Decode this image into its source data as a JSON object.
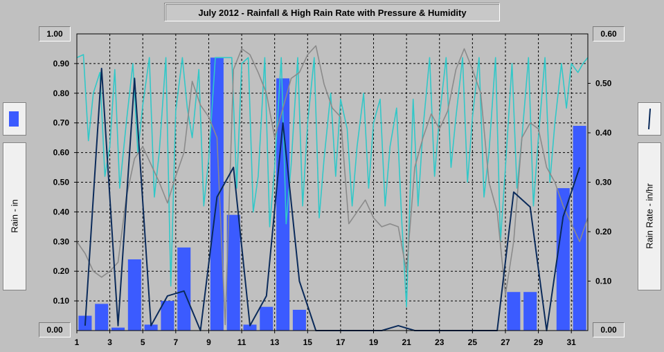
{
  "chart_data": {
    "type": "bar",
    "title": "July 2012 - Rainfall & High Rain Rate with Pressure & Humidity",
    "x": {
      "min": 1,
      "max": 32,
      "tick_labels": [
        "1",
        "3",
        "5",
        "7",
        "9",
        "11",
        "13",
        "15",
        "17",
        "19",
        "21",
        "23",
        "25",
        "27",
        "29",
        "31"
      ]
    },
    "y_left": {
      "label": "Rain - in",
      "ylim": [
        0,
        1.0
      ],
      "tick_labels": [
        "1.00",
        "0.90",
        "0.80",
        "0.70",
        "0.60",
        "0.50",
        "0.40",
        "0.30",
        "0.20",
        "0.10",
        "0.00"
      ]
    },
    "y_right": {
      "label": "Rain Rate - in/hr",
      "ylim": [
        0,
        0.6
      ],
      "tick_labels": [
        "0.60",
        "0.50",
        "0.40",
        "0.30",
        "0.20",
        "0.10",
        "0.00"
      ]
    },
    "grid": true,
    "series": [
      {
        "kind": "bar",
        "axis": "left",
        "color": "#3b5bff",
        "days": [
          1,
          2,
          3,
          4,
          5,
          6,
          7,
          8,
          9,
          10,
          11,
          12,
          13,
          14,
          15,
          16,
          17,
          18,
          19,
          20,
          21,
          22,
          23,
          24,
          25,
          26,
          27,
          28,
          29,
          30,
          31
        ],
        "values": [
          0.05,
          0.09,
          0.01,
          0.24,
          0.02,
          0.1,
          0.28,
          0.0,
          0.92,
          0.39,
          0.02,
          0.08,
          0.85,
          0.07,
          0.0,
          0.0,
          0.0,
          0.0,
          0.0,
          0.0,
          0.0,
          0.0,
          0.0,
          0.0,
          0.0,
          0.0,
          0.13,
          0.13,
          0.0,
          0.48,
          0.69
        ]
      },
      {
        "kind": "line",
        "axis": "right",
        "color": "#0a2a5a",
        "points": [
          [
            1.5,
            0.01
          ],
          [
            2.5,
            0.53
          ],
          [
            3.5,
            0.01
          ],
          [
            4.5,
            0.51
          ],
          [
            5.5,
            0.01
          ],
          [
            6.5,
            0.07
          ],
          [
            7.5,
            0.08
          ],
          [
            8.5,
            0.0
          ],
          [
            9.5,
            0.27
          ],
          [
            10.5,
            0.33
          ],
          [
            11.5,
            0.01
          ],
          [
            12.5,
            0.07
          ],
          [
            13.5,
            0.42
          ],
          [
            14.5,
            0.1
          ],
          [
            15.5,
            0.0
          ],
          [
            16.5,
            0.0
          ],
          [
            17.5,
            0.0
          ],
          [
            18.5,
            0.0
          ],
          [
            19.5,
            0.0
          ],
          [
            20.5,
            0.01
          ],
          [
            21.5,
            0.0
          ],
          [
            22.5,
            0.0
          ],
          [
            23.5,
            0.0
          ],
          [
            24.5,
            0.0
          ],
          [
            25.5,
            0.0
          ],
          [
            26.5,
            0.0
          ],
          [
            27.5,
            0.28
          ],
          [
            28.5,
            0.25
          ],
          [
            29.5,
            0.0
          ],
          [
            30.5,
            0.23
          ],
          [
            31.5,
            0.33
          ]
        ]
      },
      {
        "kind": "line",
        "axis": "left",
        "color": "#8a8a8a",
        "points": [
          [
            1,
            0.3
          ],
          [
            1.5,
            0.26
          ],
          [
            2,
            0.2
          ],
          [
            2.5,
            0.18
          ],
          [
            3,
            0.2
          ],
          [
            3.5,
            0.23
          ],
          [
            4,
            0.45
          ],
          [
            4.5,
            0.58
          ],
          [
            5,
            0.62
          ],
          [
            5.5,
            0.56
          ],
          [
            6,
            0.5
          ],
          [
            6.5,
            0.43
          ],
          [
            7,
            0.52
          ],
          [
            7.5,
            0.6
          ],
          [
            8,
            0.84
          ],
          [
            8.5,
            0.76
          ],
          [
            9,
            0.72
          ],
          [
            9.5,
            0.65
          ],
          [
            10,
            0.02
          ],
          [
            10.5,
            0.88
          ],
          [
            11,
            0.95
          ],
          [
            11.5,
            0.93
          ],
          [
            12,
            0.87
          ],
          [
            12.5,
            0.8
          ],
          [
            13,
            0.65
          ],
          [
            13.5,
            0.75
          ],
          [
            14,
            0.85
          ],
          [
            14.5,
            0.87
          ],
          [
            15,
            0.93
          ],
          [
            15.5,
            0.96
          ],
          [
            16,
            0.83
          ],
          [
            16.5,
            0.75
          ],
          [
            17,
            0.72
          ],
          [
            17.5,
            0.36
          ],
          [
            18,
            0.4
          ],
          [
            18.5,
            0.44
          ],
          [
            19,
            0.38
          ],
          [
            19.5,
            0.35
          ],
          [
            20,
            0.36
          ],
          [
            20.5,
            0.35
          ],
          [
            21,
            0.2
          ],
          [
            21.5,
            0.55
          ],
          [
            22,
            0.65
          ],
          [
            22.5,
            0.73
          ],
          [
            23,
            0.68
          ],
          [
            23.5,
            0.74
          ],
          [
            24,
            0.88
          ],
          [
            24.5,
            0.95
          ],
          [
            25,
            0.88
          ],
          [
            25.5,
            0.8
          ],
          [
            26,
            0.5
          ],
          [
            26.5,
            0.4
          ],
          [
            27,
            0.12
          ],
          [
            27.5,
            0.3
          ],
          [
            28,
            0.65
          ],
          [
            28.5,
            0.7
          ],
          [
            29,
            0.68
          ],
          [
            29.5,
            0.55
          ],
          [
            30,
            0.5
          ],
          [
            30.5,
            0.42
          ],
          [
            31,
            0.36
          ],
          [
            31.5,
            0.3
          ],
          [
            32,
            0.38
          ]
        ]
      },
      {
        "kind": "line",
        "axis": "left",
        "color": "#30c8c8",
        "points": [
          [
            1,
            0.92
          ],
          [
            1.4,
            0.93
          ],
          [
            1.7,
            0.64
          ],
          [
            2,
            0.8
          ],
          [
            2.4,
            0.87
          ],
          [
            2.7,
            0.52
          ],
          [
            3,
            0.62
          ],
          [
            3.3,
            0.88
          ],
          [
            3.6,
            0.48
          ],
          [
            4,
            0.7
          ],
          [
            4.4,
            0.9
          ],
          [
            4.7,
            0.6
          ],
          [
            5,
            0.76
          ],
          [
            5.4,
            0.92
          ],
          [
            5.7,
            0.45
          ],
          [
            6,
            0.6
          ],
          [
            6.4,
            0.92
          ],
          [
            6.7,
            0.15
          ],
          [
            7,
            0.74
          ],
          [
            7.4,
            0.92
          ],
          [
            7.7,
            0.75
          ],
          [
            8,
            0.65
          ],
          [
            8.4,
            0.88
          ],
          [
            8.7,
            0.42
          ],
          [
            9,
            0.58
          ],
          [
            9.4,
            0.92
          ],
          [
            9.7,
            0.92
          ],
          [
            10,
            0.92
          ],
          [
            10.4,
            0.92
          ],
          [
            10.7,
            0.48
          ],
          [
            11,
            0.9
          ],
          [
            11.4,
            0.92
          ],
          [
            11.7,
            0.4
          ],
          [
            12,
            0.52
          ],
          [
            12.4,
            0.92
          ],
          [
            12.7,
            0.35
          ],
          [
            13,
            0.55
          ],
          [
            13.4,
            0.92
          ],
          [
            13.7,
            0.36
          ],
          [
            14,
            0.56
          ],
          [
            14.4,
            0.92
          ],
          [
            14.7,
            0.42
          ],
          [
            15,
            0.7
          ],
          [
            15.4,
            0.92
          ],
          [
            15.7,
            0.38
          ],
          [
            16,
            0.58
          ],
          [
            16.4,
            0.8
          ],
          [
            16.7,
            0.52
          ],
          [
            17,
            0.78
          ],
          [
            17.4,
            0.68
          ],
          [
            17.7,
            0.42
          ],
          [
            18,
            0.62
          ],
          [
            18.4,
            0.8
          ],
          [
            18.7,
            0.48
          ],
          [
            19,
            0.7
          ],
          [
            19.4,
            0.78
          ],
          [
            19.7,
            0.42
          ],
          [
            20,
            0.62
          ],
          [
            20.4,
            0.75
          ],
          [
            20.7,
            0.38
          ],
          [
            21,
            0.08
          ],
          [
            21.4,
            0.78
          ],
          [
            21.7,
            0.42
          ],
          [
            22,
            0.68
          ],
          [
            22.4,
            0.92
          ],
          [
            22.7,
            0.52
          ],
          [
            23,
            0.72
          ],
          [
            23.4,
            0.92
          ],
          [
            23.7,
            0.55
          ],
          [
            24,
            0.72
          ],
          [
            24.4,
            0.92
          ],
          [
            24.7,
            0.5
          ],
          [
            25,
            0.72
          ],
          [
            25.4,
            0.92
          ],
          [
            25.7,
            0.45
          ],
          [
            26,
            0.6
          ],
          [
            26.4,
            0.92
          ],
          [
            26.7,
            0.3
          ],
          [
            27,
            0.55
          ],
          [
            27.4,
            0.9
          ],
          [
            27.7,
            0.48
          ],
          [
            28,
            0.65
          ],
          [
            28.4,
            0.92
          ],
          [
            28.7,
            0.42
          ],
          [
            29,
            0.65
          ],
          [
            29.4,
            0.92
          ],
          [
            29.7,
            0.5
          ],
          [
            30,
            0.7
          ],
          [
            30.4,
            0.9
          ],
          [
            30.7,
            0.75
          ],
          [
            31,
            0.9
          ],
          [
            31.4,
            0.87
          ],
          [
            31.7,
            0.9
          ],
          [
            32,
            0.92
          ]
        ]
      }
    ]
  }
}
